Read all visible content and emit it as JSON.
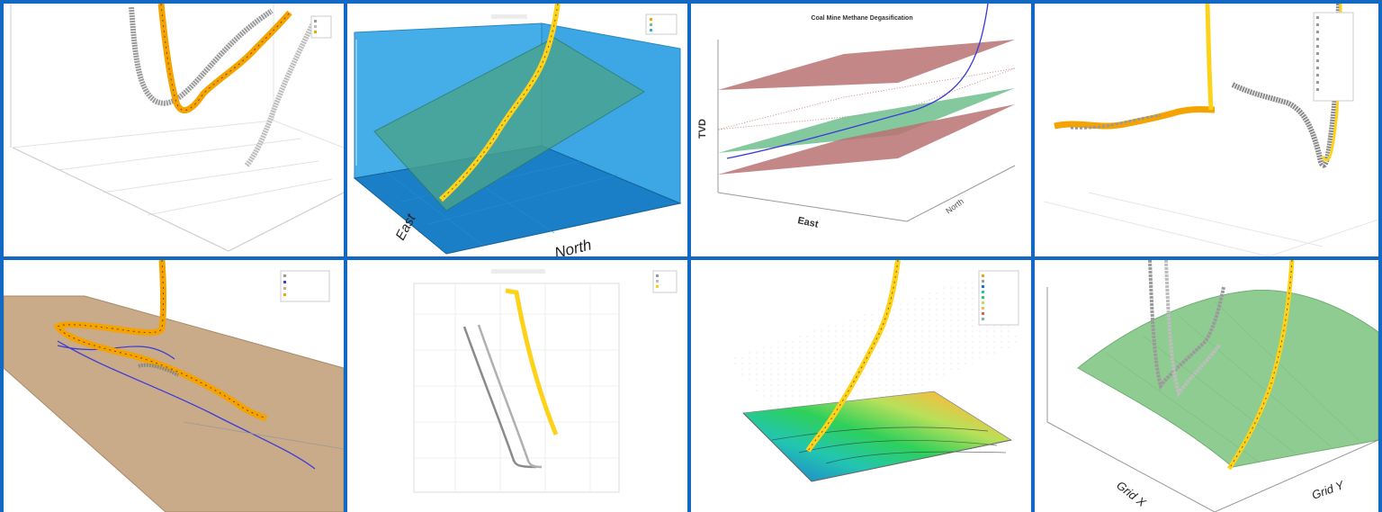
{
  "chart_data": [
    {
      "type": "line",
      "title": "",
      "panel": "top-1",
      "series": [
        {
          "name": ""
        },
        {
          "name": ""
        },
        {
          "name": ""
        }
      ],
      "legend": "top-right",
      "grid": true
    },
    {
      "type": "line",
      "title": "",
      "panel": "top-2",
      "axis_labels": {
        "x": "East",
        "y": "North",
        "z": ""
      },
      "legend": "top-right",
      "grid": true
    },
    {
      "type": "line",
      "title": "Coal Mine Methane Degasification",
      "panel": "top-3",
      "axis_labels": {
        "x": "East",
        "y": "North",
        "z": "TVD"
      },
      "grid": true
    },
    {
      "type": "line",
      "title": "",
      "panel": "top-4",
      "legend": "top-right",
      "grid": true
    },
    {
      "type": "line",
      "title": "",
      "panel": "bottom-1",
      "legend": "top-right",
      "grid": true
    },
    {
      "type": "line",
      "title": "",
      "panel": "bottom-2",
      "legend": "top-right",
      "grid": true
    },
    {
      "type": "line",
      "title": "",
      "panel": "bottom-3",
      "legend": "top-right",
      "grid": true
    },
    {
      "type": "line",
      "title": "",
      "panel": "bottom-4",
      "axis_labels": {
        "x": "Grid X",
        "y": "Grid Y",
        "z": ""
      },
      "grid": true
    }
  ],
  "labels": {
    "p2_east": "East",
    "p2_north": "North",
    "p3_title": "Coal Mine Methane Degasification",
    "p3_tvd": "TVD",
    "p3_east": "East",
    "p3_north": "North",
    "p8_gridx": "Grid X",
    "p8_gridy": "Grid Y"
  },
  "colors": {
    "frame": "#1269c4",
    "well_orange": "#f5a300",
    "well_yellow": "#ffd21a",
    "well_gray": "#9a9a9a",
    "plane_blue": "#39a9e6",
    "plane_green": "#6fc08c",
    "plane_red": "#b87272",
    "plane_tan": "#c9ab8a",
    "line_blue": "#3a3ad8"
  }
}
